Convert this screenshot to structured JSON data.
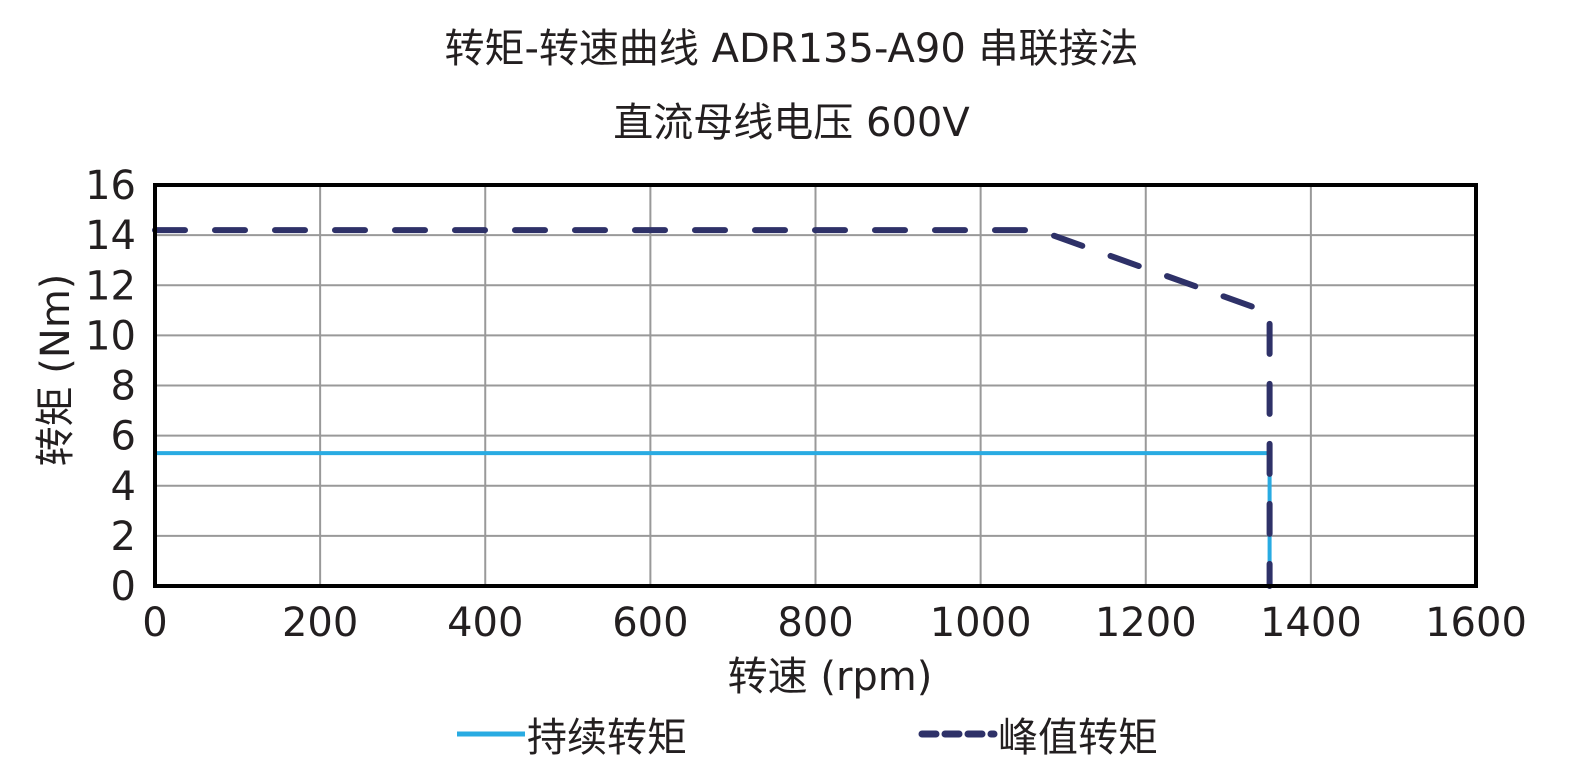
{
  "title": "转矩-转速曲线 ADR135-A90 串联接法",
  "subtitle": "直流母线电压 600V",
  "chart_data": {
    "type": "line",
    "title": "转矩-转速曲线 ADR135-A90 串联接法",
    "subtitle": "直流母线电压 600V",
    "xlabel": "转速 (rpm)",
    "ylabel": "转矩 (Nm)",
    "xlim": [
      0,
      1600
    ],
    "ylim": [
      0,
      16
    ],
    "xticks": [
      0,
      200,
      400,
      600,
      800,
      1000,
      1200,
      1400,
      1600
    ],
    "yticks": [
      0,
      2,
      4,
      6,
      8,
      10,
      12,
      14,
      16
    ],
    "grid": true,
    "legend_position": "bottom",
    "series": [
      {
        "name": "持续转矩",
        "style": "solid",
        "color": "#29abe2",
        "x": [
          0,
          1350,
          1350
        ],
        "y": [
          5.3,
          5.3,
          0
        ]
      },
      {
        "name": "峰值转矩",
        "style": "dashed",
        "color": "#2e3168",
        "x": [
          0,
          1070,
          1350,
          1350
        ],
        "y": [
          14.2,
          14.2,
          10.9,
          0
        ]
      }
    ]
  },
  "legend": {
    "continuous": "持续转矩",
    "peak": "峰值转矩"
  }
}
